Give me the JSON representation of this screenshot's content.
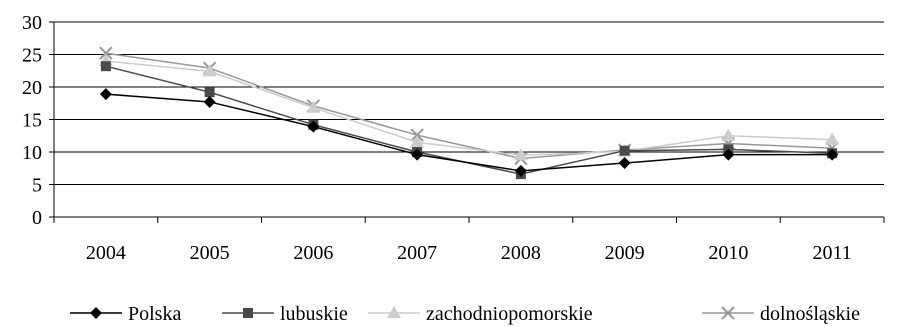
{
  "chart_data": {
    "type": "line",
    "categories": [
      "2004",
      "2005",
      "2006",
      "2007",
      "2008",
      "2009",
      "2010",
      "2011"
    ],
    "ylim": [
      0,
      30
    ],
    "yticks": [
      0,
      5,
      10,
      15,
      20,
      25,
      30
    ],
    "grid": "horizontal",
    "legend_placement": "bottom",
    "series": [
      {
        "name": "Polska",
        "marker": "diamond",
        "color": "#000000",
        "values": [
          18.9,
          17.7,
          13.9,
          9.6,
          7.1,
          8.3,
          9.6,
          9.6
        ]
      },
      {
        "name": "lubuskie",
        "marker": "square",
        "color": "#4a4a4a",
        "values": [
          23.2,
          19.2,
          14.2,
          10.0,
          6.6,
          10.2,
          10.4,
          9.8
        ]
      },
      {
        "name": "zachodniopomorskie",
        "marker": "triangle",
        "color": "#cccccc",
        "values": [
          24.0,
          22.4,
          16.8,
          11.5,
          9.5,
          10.1,
          12.5,
          11.9
        ]
      },
      {
        "name": "dolnośląskie",
        "marker": "x",
        "color": "#999999",
        "values": [
          25.2,
          22.9,
          17.1,
          12.6,
          9.0,
          10.3,
          11.3,
          10.6
        ]
      }
    ]
  }
}
